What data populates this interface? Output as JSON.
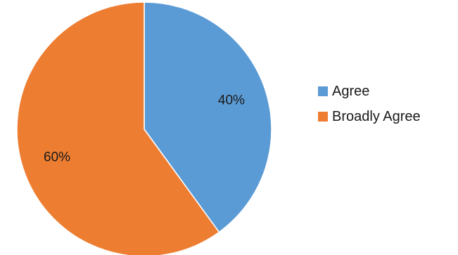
{
  "chart_data": {
    "type": "pie",
    "slices": [
      {
        "label": "Agree",
        "value": 40,
        "display": "40%",
        "color": "#5B9BD5"
      },
      {
        "label": "Broadly Agree",
        "value": 60,
        "display": "60%",
        "color": "#ED7D31"
      }
    ],
    "start_angle": "12 o'clock",
    "direction": "clockwise",
    "legend": "right"
  }
}
